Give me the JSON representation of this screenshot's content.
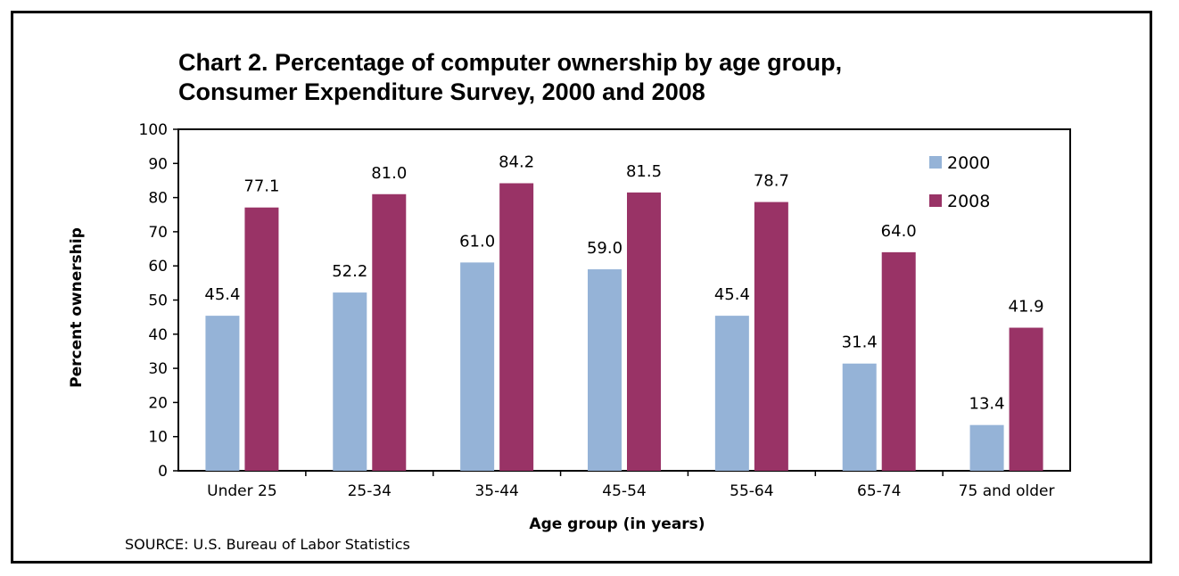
{
  "chart_data": {
    "type": "bar",
    "title_lines": [
      "Chart 2.  Percentage of computer ownership by age group,",
      "Consumer Expenditure Survey,  2000 and 2008"
    ],
    "xlabel": "Age group  (in years)",
    "ylabel": "Percent ownership",
    "ylim": [
      0,
      100
    ],
    "yticks": [
      0,
      10,
      20,
      30,
      40,
      50,
      60,
      70,
      80,
      90,
      100
    ],
    "categories": [
      "Under 25",
      "25-34",
      "35-44",
      "45-54",
      "55-64",
      "65-74",
      "75 and older"
    ],
    "series": [
      {
        "name": "2000",
        "color": "#95b3d7",
        "values": [
          45.4,
          52.2,
          61.0,
          59.0,
          45.4,
          31.4,
          13.4
        ]
      },
      {
        "name": "2008",
        "color": "#993366",
        "values": [
          77.1,
          81.0,
          84.2,
          81.5,
          78.7,
          64.0,
          41.9
        ]
      }
    ],
    "value_decimals": 1,
    "legend_position": "top-right",
    "grid": false,
    "source": "SOURCE:  U.S. Bureau of Labor Statistics"
  }
}
